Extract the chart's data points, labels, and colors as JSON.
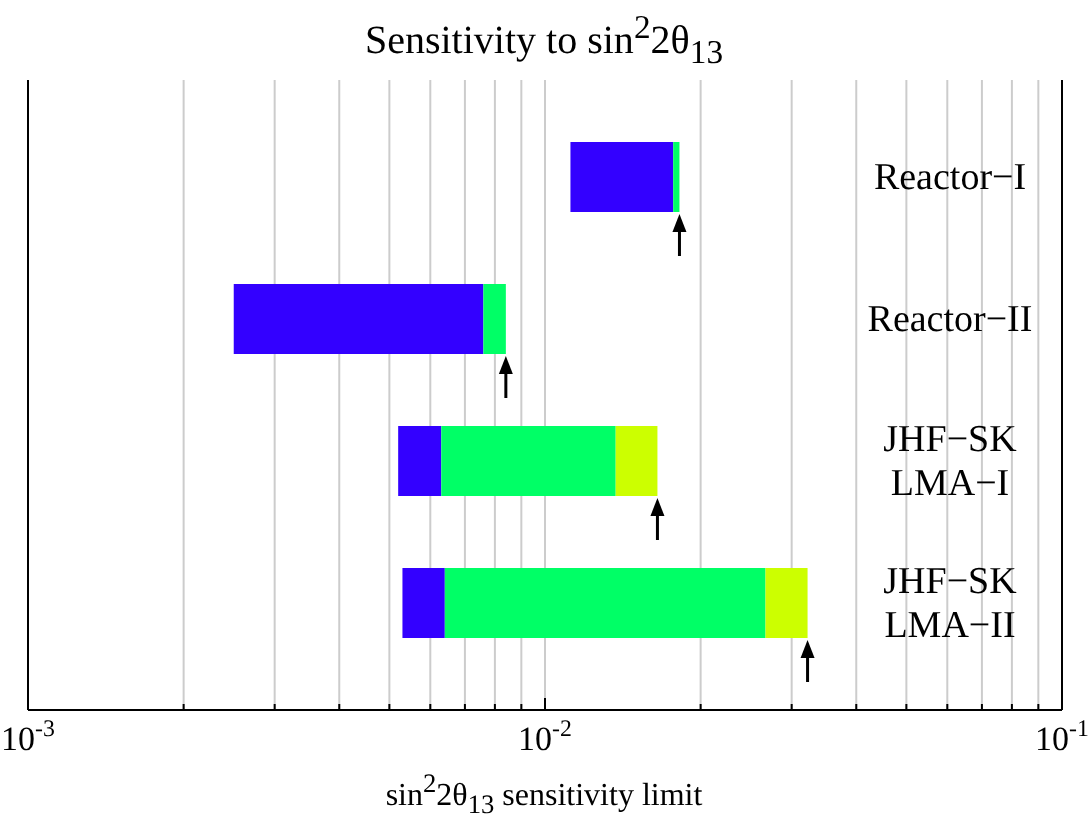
{
  "chart_data": {
    "type": "bar",
    "title": "Sensitivity to sin$^{2}$2θ$_{13}$",
    "xlabel": "sin$^{2}$2θ$_{13}$ sensitivity limit",
    "categories": [
      "Reactor−I",
      "Reactor−II",
      "JHF−SK LMA−I",
      "JHF−SK LMA−II"
    ],
    "orientation": "horizontal",
    "log": "x",
    "grid": "x",
    "series": [
      {
        "color": "#3300ff",
        "base": [
          0.0112,
          0.0025,
          0.0052,
          0.0053
        ],
        "values": [
          0.0065,
          0.0051,
          0.0011,
          0.0011
        ]
      },
      {
        "color": "#00ff66",
        "base": [
          0.0177,
          0.0076,
          0.0063,
          0.0064
        ],
        "values": [
          0.0005,
          0.0008,
          0.0074,
          0.0203
        ]
      },
      {
        "color": "#ccff00",
        "base": [
          null,
          null,
          0.0137,
          0.0267
        ],
        "values": [
          null,
          null,
          0.0028,
          0.0055
        ]
      }
    ],
    "xlim": [
      0.001,
      0.1
    ],
    "xticks": [
      {
        "value": 0.001,
        "label": "10$^{-3}$"
      },
      {
        "value": 0.002,
        "label": null
      },
      {
        "value": 0.003,
        "label": null
      },
      {
        "value": 0.004,
        "label": null
      },
      {
        "value": 0.005,
        "label": null
      },
      {
        "value": 0.006,
        "label": null
      },
      {
        "value": 0.007,
        "label": null
      },
      {
        "value": 0.008,
        "label": null
      },
      {
        "value": 0.009,
        "label": null
      },
      {
        "value": 0.01,
        "label": "10$^{-2}$"
      },
      {
        "value": 0.02,
        "label": null
      },
      {
        "value": 0.03,
        "label": null
      },
      {
        "value": 0.04,
        "label": null
      },
      {
        "value": 0.05,
        "label": null
      },
      {
        "value": 0.06,
        "label": null
      },
      {
        "value": 0.07,
        "label": null
      },
      {
        "value": 0.08,
        "label": null
      },
      {
        "value": 0.09,
        "label": null
      },
      {
        "value": 0.1,
        "label": "10$^{-1}$"
      }
    ]
  }
}
